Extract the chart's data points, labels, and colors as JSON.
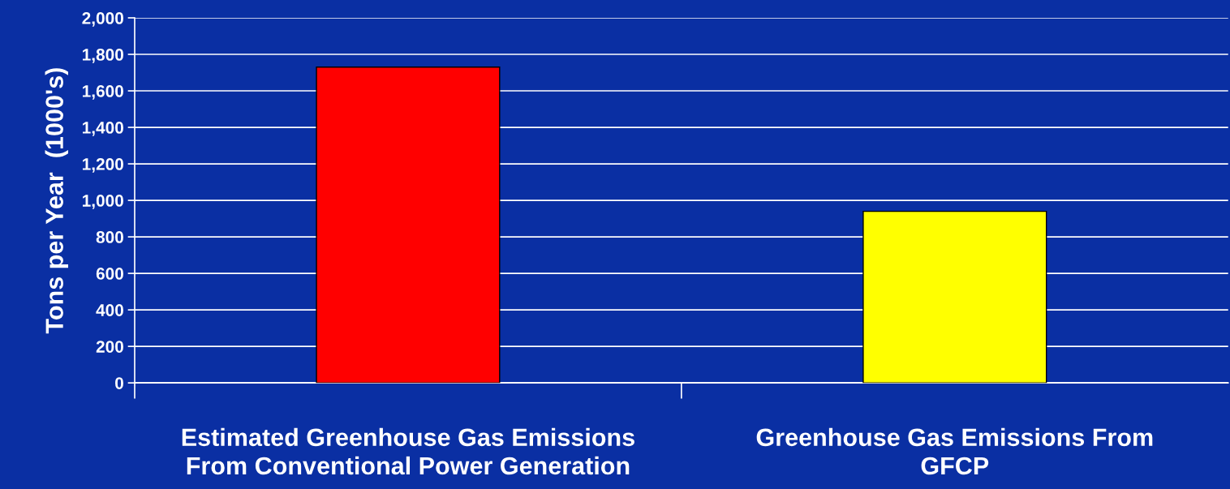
{
  "chart_data": {
    "type": "bar",
    "ylabel": "Tons per Year  (1000's)",
    "categories": [
      "Estimated Greenhouse Gas Emissions\nFrom Conventional Power Generation",
      "Greenhouse Gas Emissions From\nGFCP"
    ],
    "values": [
      1730,
      940
    ],
    "colors": [
      "#ff0000",
      "#ffff00"
    ],
    "ylim": [
      0,
      2000
    ],
    "yticks": [
      0,
      200,
      400,
      600,
      800,
      {
        "value": 1000,
        "label": "1,000"
      },
      {
        "value": 1200,
        "label": "1,200"
      },
      {
        "value": 1400,
        "label": "1,400"
      },
      {
        "value": 1600,
        "label": "1,600"
      },
      {
        "value": 1800,
        "label": "1,800"
      },
      {
        "value": 2000,
        "label": "2,000"
      }
    ],
    "grid": "y",
    "legend": false
  }
}
